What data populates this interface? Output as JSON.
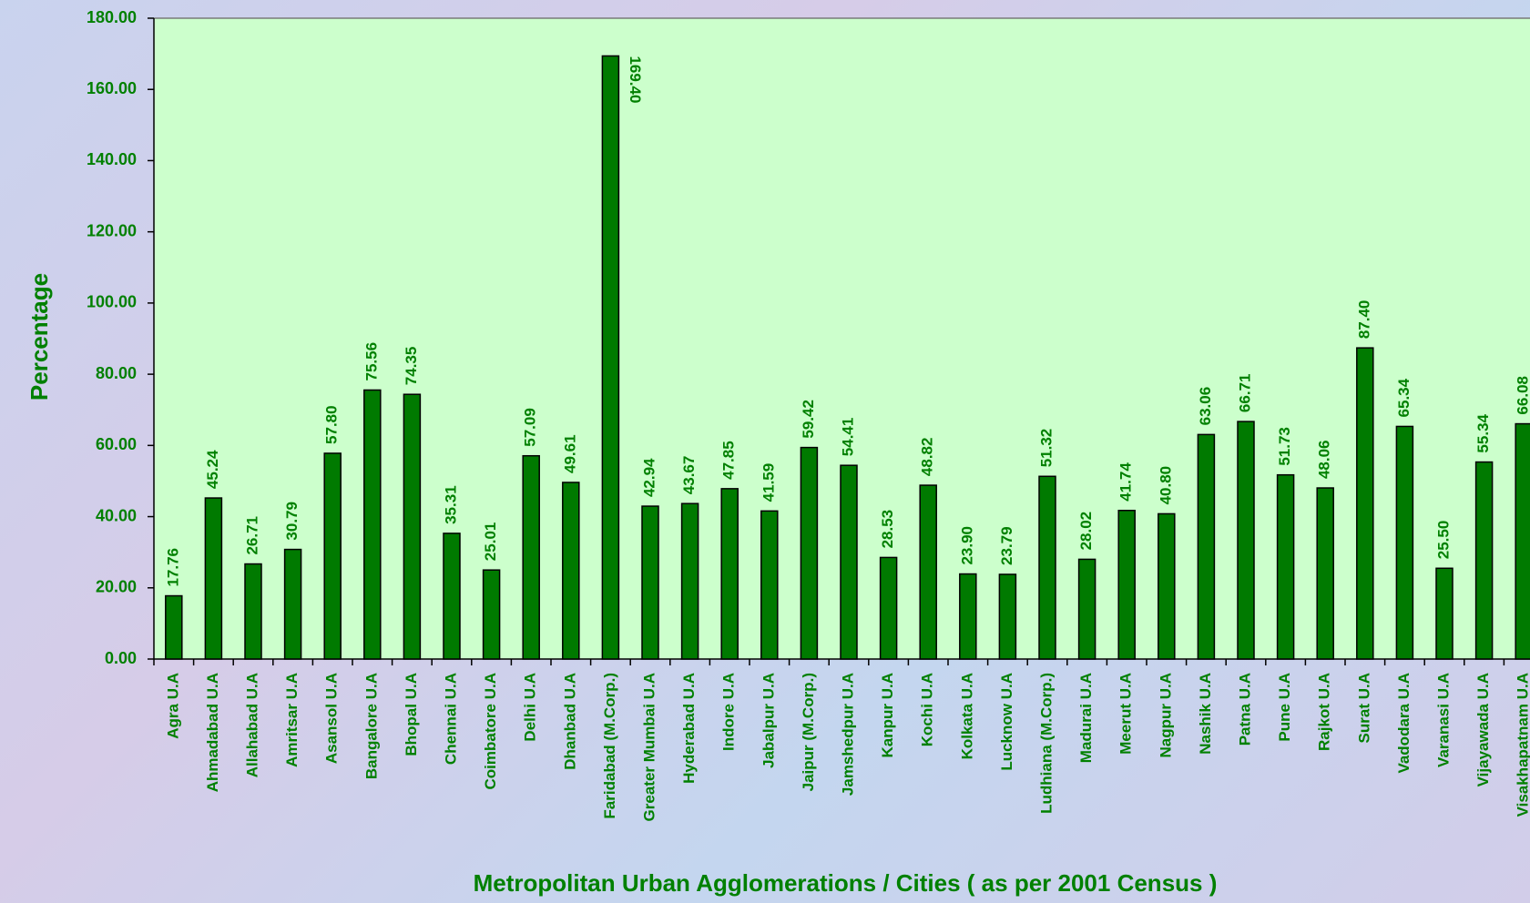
{
  "chart_data": {
    "type": "bar",
    "y_label": "Percentage",
    "x_label": "Metropolitan Urban Agglomerations / Cities ( as per 2001 Census )",
    "categories": [
      "Agra U.A",
      "Ahmadabad U.A",
      "Allahabad U.A",
      "Amritsar U.A",
      "Asansol U.A",
      "Bangalore U.A",
      "Bhopal U.A",
      "Chennai U.A",
      "Coimbatore U.A",
      "Delhi U.A",
      "Dhanbad U.A",
      "Faridabad (M.Corp.)",
      "Greater Mumbai U.A",
      "Hyderabad U.A",
      "Indore U.A",
      "Jabalpur U.A",
      "Jaipur (M.Corp.)",
      "Jamshedpur U.A",
      "Kanpur U.A",
      "Kochi U.A",
      "Kolkata U.A",
      "Lucknow U.A",
      "Ludhiana (M.Corp.)",
      "Madurai U.A",
      "Meerut U.A",
      "Nagpur U.A",
      "Nashik U.A",
      "Patna U.A",
      "Pune U.A",
      "Rajkot U.A",
      "Surat U.A",
      "Vadodara U.A",
      "Varanasi U.A",
      "Vijayawada U.A",
      "Visakhapatnam U.A"
    ],
    "values": [
      17.76,
      45.24,
      26.71,
      30.79,
      57.8,
      75.56,
      74.35,
      35.31,
      25.01,
      57.09,
      49.61,
      169.4,
      42.94,
      43.67,
      47.85,
      41.59,
      59.42,
      54.41,
      28.53,
      48.82,
      23.9,
      23.79,
      51.32,
      28.02,
      41.74,
      40.8,
      63.06,
      66.71,
      51.73,
      48.06,
      87.4,
      65.34,
      25.5,
      55.34,
      66.08
    ],
    "value_labels": [
      "17.76",
      "45.24",
      "26.71",
      "30.79",
      "57.80",
      "75.56",
      "74.35",
      "35.31",
      "25.01",
      "57.09",
      "49.61",
      "169.40",
      "42.94",
      "43.67",
      "47.85",
      "41.59",
      "59.42",
      "54.41",
      "28.53",
      "48.82",
      "23.90",
      "23.79",
      "51.32",
      "28.02",
      "41.74",
      "40.80",
      "63.06",
      "66.71",
      "51.73",
      "48.06",
      "87.40",
      "65.34",
      "25.50",
      "55.34",
      "66.08"
    ],
    "color": "#007a00",
    "ylim": [
      0,
      180
    ],
    "yticks": [
      {
        "value": 0,
        "label": "0.00"
      },
      {
        "value": 20,
        "label": "20.00"
      },
      {
        "value": 40,
        "label": "40.00"
      },
      {
        "value": 60,
        "label": "60.00"
      },
      {
        "value": 80,
        "label": "80.00"
      },
      {
        "value": 100,
        "label": "100.00"
      },
      {
        "value": 120,
        "label": "120.00"
      },
      {
        "value": 140,
        "label": "140.00"
      },
      {
        "value": 160,
        "label": "160.00"
      },
      {
        "value": 180,
        "label": "180.00"
      }
    ],
    "grid": false
  }
}
